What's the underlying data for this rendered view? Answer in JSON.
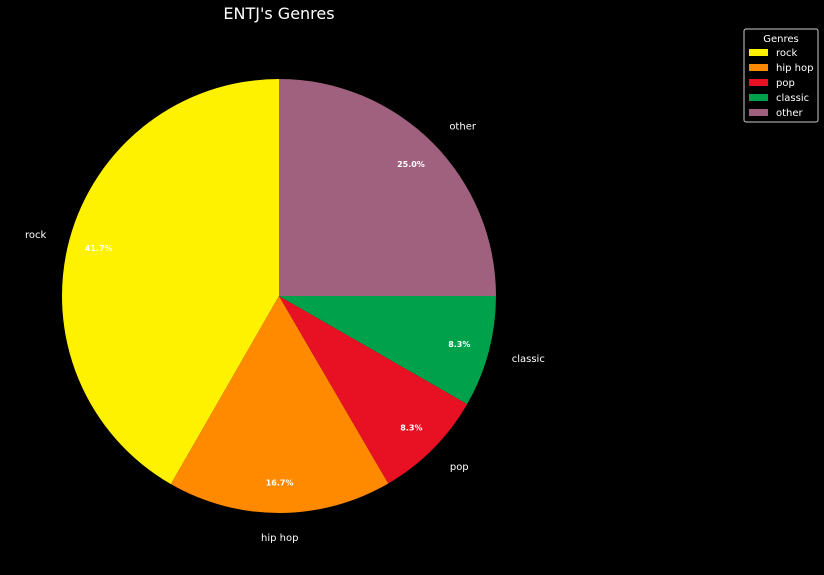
{
  "chart_data": {
    "type": "pie",
    "title": "ENTJ's Genres",
    "categories": [
      "rock",
      "hip hop",
      "pop",
      "classic",
      "other"
    ],
    "values": [
      41.7,
      16.7,
      8.3,
      8.3,
      25.0
    ],
    "percent_labels": [
      "41.7%",
      "16.7%",
      "8.3%",
      "8.3%",
      "25.0%"
    ],
    "colors": [
      "#fff200",
      "#ff8a00",
      "#e81123",
      "#00a14b",
      "#a0617e"
    ],
    "start_angle_deg": 90,
    "direction": "counterclockwise",
    "legend": {
      "title": "Genres",
      "placement": "top-right",
      "entries": [
        "rock",
        "hip hop",
        "pop",
        "classic",
        "other"
      ]
    }
  },
  "colors": {
    "background": "#000000",
    "text": "#ffffff"
  }
}
